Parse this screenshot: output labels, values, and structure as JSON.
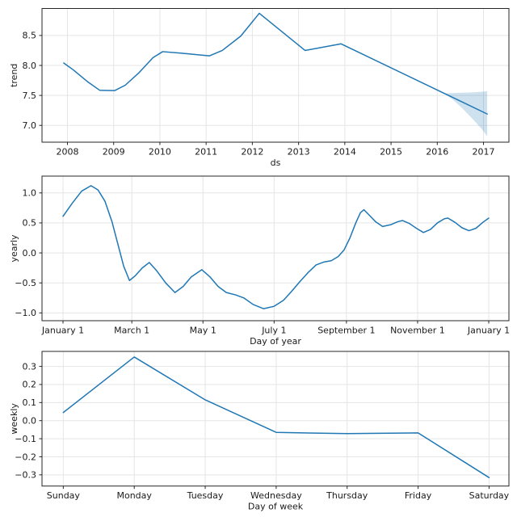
{
  "figure": {
    "background": "#ffffff",
    "line_color": "#1f77b4",
    "band_color": "#1f77b4",
    "band_opacity": 0.22,
    "grid_color": "#e5e5e5",
    "spine_color": "#262626",
    "text_color": "#1a1a1a"
  },
  "chart_data": [
    {
      "type": "line",
      "name": "trend",
      "xlabel": "ds",
      "ylabel": "trend",
      "xlim": [
        2007.45,
        2017.55
      ],
      "ylim": [
        6.72,
        8.95
      ],
      "grid": true,
      "legend": "none",
      "xticks": [
        {
          "v": 2008,
          "label": "2008"
        },
        {
          "v": 2009,
          "label": "2009"
        },
        {
          "v": 2010,
          "label": "2010"
        },
        {
          "v": 2011,
          "label": "2011"
        },
        {
          "v": 2012,
          "label": "2012"
        },
        {
          "v": 2013,
          "label": "2013"
        },
        {
          "v": 2014,
          "label": "2014"
        },
        {
          "v": 2015,
          "label": "2015"
        },
        {
          "v": 2016,
          "label": "2016"
        },
        {
          "v": 2017,
          "label": "2017"
        }
      ],
      "yticks": [
        {
          "v": 7.0,
          "label": "7.0"
        },
        {
          "v": 7.5,
          "label": "7.5"
        },
        {
          "v": 8.0,
          "label": "8.0"
        },
        {
          "v": 8.5,
          "label": "8.5"
        }
      ],
      "series": [
        {
          "name": "trend",
          "points": [
            [
              2007.92,
              8.04
            ],
            [
              2008.12,
              7.93
            ],
            [
              2008.45,
              7.72
            ],
            [
              2008.7,
              7.585
            ],
            [
              2009.02,
              7.58
            ],
            [
              2009.25,
              7.67
            ],
            [
              2009.55,
              7.88
            ],
            [
              2009.85,
              8.13
            ],
            [
              2010.06,
              8.23
            ],
            [
              2010.45,
              8.205
            ],
            [
              2011.07,
              8.16
            ],
            [
              2011.35,
              8.25
            ],
            [
              2011.75,
              8.49
            ],
            [
              2012.15,
              8.87
            ],
            [
              2013.14,
              8.25
            ],
            [
              2013.92,
              8.36
            ],
            [
              2016.15,
              7.535
            ],
            [
              2017.08,
              7.19
            ]
          ]
        }
      ],
      "band": {
        "x": [
          2016.15,
          2016.35,
          2016.55,
          2016.75,
          2016.95,
          2017.08
        ],
        "upper": [
          7.535,
          7.54,
          7.545,
          7.55,
          7.56,
          7.57
        ],
        "lower": [
          7.535,
          7.42,
          7.28,
          7.12,
          6.95,
          6.82
        ]
      }
    },
    {
      "type": "line",
      "name": "yearly",
      "xlabel": "Day of year",
      "ylabel": "yearly",
      "xlim": [
        -18,
        382.3
      ],
      "ylim": [
        -1.13,
        1.28
      ],
      "grid": true,
      "legend": "none",
      "xticks": [
        {
          "v": 0,
          "label": "January 1"
        },
        {
          "v": 59,
          "label": "March 1"
        },
        {
          "v": 120,
          "label": "May 1"
        },
        {
          "v": 181,
          "label": "July 1"
        },
        {
          "v": 243,
          "label": "September 1"
        },
        {
          "v": 304,
          "label": "November 1"
        },
        {
          "v": 365,
          "label": "January 1"
        }
      ],
      "yticks": [
        {
          "v": -1.0,
          "label": "−1.0"
        },
        {
          "v": -0.5,
          "label": "−0.5"
        },
        {
          "v": 0.0,
          "label": "0.0"
        },
        {
          "v": 0.5,
          "label": "0.5"
        },
        {
          "v": 1.0,
          "label": "1.0"
        }
      ],
      "series": [
        {
          "name": "yearly",
          "points": [
            [
              0,
              0.61
            ],
            [
              8,
              0.83
            ],
            [
              16,
              1.03
            ],
            [
              24,
              1.12
            ],
            [
              30,
              1.05
            ],
            [
              36,
              0.86
            ],
            [
              42,
              0.52
            ],
            [
              47,
              0.15
            ],
            [
              52,
              -0.22
            ],
            [
              57,
              -0.46
            ],
            [
              62,
              -0.38
            ],
            [
              68,
              -0.25
            ],
            [
              74,
              -0.16
            ],
            [
              80,
              -0.29
            ],
            [
              88,
              -0.5
            ],
            [
              96,
              -0.66
            ],
            [
              103,
              -0.56
            ],
            [
              110,
              -0.4
            ],
            [
              119,
              -0.28
            ],
            [
              126,
              -0.4
            ],
            [
              133,
              -0.56
            ],
            [
              140,
              -0.66
            ],
            [
              148,
              -0.7
            ],
            [
              155,
              -0.75
            ],
            [
              163,
              -0.86
            ],
            [
              172,
              -0.93
            ],
            [
              181,
              -0.89
            ],
            [
              189,
              -0.79
            ],
            [
              196,
              -0.64
            ],
            [
              203,
              -0.48
            ],
            [
              210,
              -0.33
            ],
            [
              217,
              -0.2
            ],
            [
              224,
              -0.15
            ],
            [
              230,
              -0.13
            ],
            [
              236,
              -0.06
            ],
            [
              241,
              0.05
            ],
            [
              246,
              0.25
            ],
            [
              251,
              0.5
            ],
            [
              255,
              0.67
            ],
            [
              258,
              0.72
            ],
            [
              263,
              0.62
            ],
            [
              268,
              0.52
            ],
            [
              274,
              0.44
            ],
            [
              281,
              0.47
            ],
            [
              287,
              0.52
            ],
            [
              291,
              0.54
            ],
            [
              297,
              0.49
            ],
            [
              303,
              0.41
            ],
            [
              309,
              0.34
            ],
            [
              315,
              0.39
            ],
            [
              321,
              0.5
            ],
            [
              327,
              0.57
            ],
            [
              330,
              0.58
            ],
            [
              336,
              0.51
            ],
            [
              342,
              0.42
            ],
            [
              348,
              0.37
            ],
            [
              354,
              0.41
            ],
            [
              360,
              0.51
            ],
            [
              365,
              0.58
            ]
          ]
        }
      ]
    },
    {
      "type": "line",
      "name": "weekly",
      "xlabel": "Day of week",
      "ylabel": "weekly",
      "xlim": [
        -0.3,
        6.28
      ],
      "ylim": [
        -0.362,
        0.383
      ],
      "grid": true,
      "legend": "none",
      "xticks": [
        {
          "v": 0,
          "label": "Sunday"
        },
        {
          "v": 1,
          "label": "Monday"
        },
        {
          "v": 2,
          "label": "Tuesday"
        },
        {
          "v": 3,
          "label": "Wednesday"
        },
        {
          "v": 4,
          "label": "Thursday"
        },
        {
          "v": 5,
          "label": "Friday"
        },
        {
          "v": 6,
          "label": "Saturday"
        }
      ],
      "yticks": [
        {
          "v": -0.3,
          "label": "−0.3"
        },
        {
          "v": -0.2,
          "label": "−0.2"
        },
        {
          "v": -0.1,
          "label": "−0.1"
        },
        {
          "v": 0.0,
          "label": "0.0"
        },
        {
          "v": 0.1,
          "label": "0.1"
        },
        {
          "v": 0.2,
          "label": "0.2"
        },
        {
          "v": 0.3,
          "label": "0.3"
        }
      ],
      "series": [
        {
          "name": "weekly",
          "points": [
            [
              0,
              0.045
            ],
            [
              1,
              0.352
            ],
            [
              2,
              0.115
            ],
            [
              3,
              -0.065
            ],
            [
              4,
              -0.072
            ],
            [
              5,
              -0.068
            ],
            [
              6,
              -0.315
            ]
          ]
        }
      ]
    }
  ]
}
